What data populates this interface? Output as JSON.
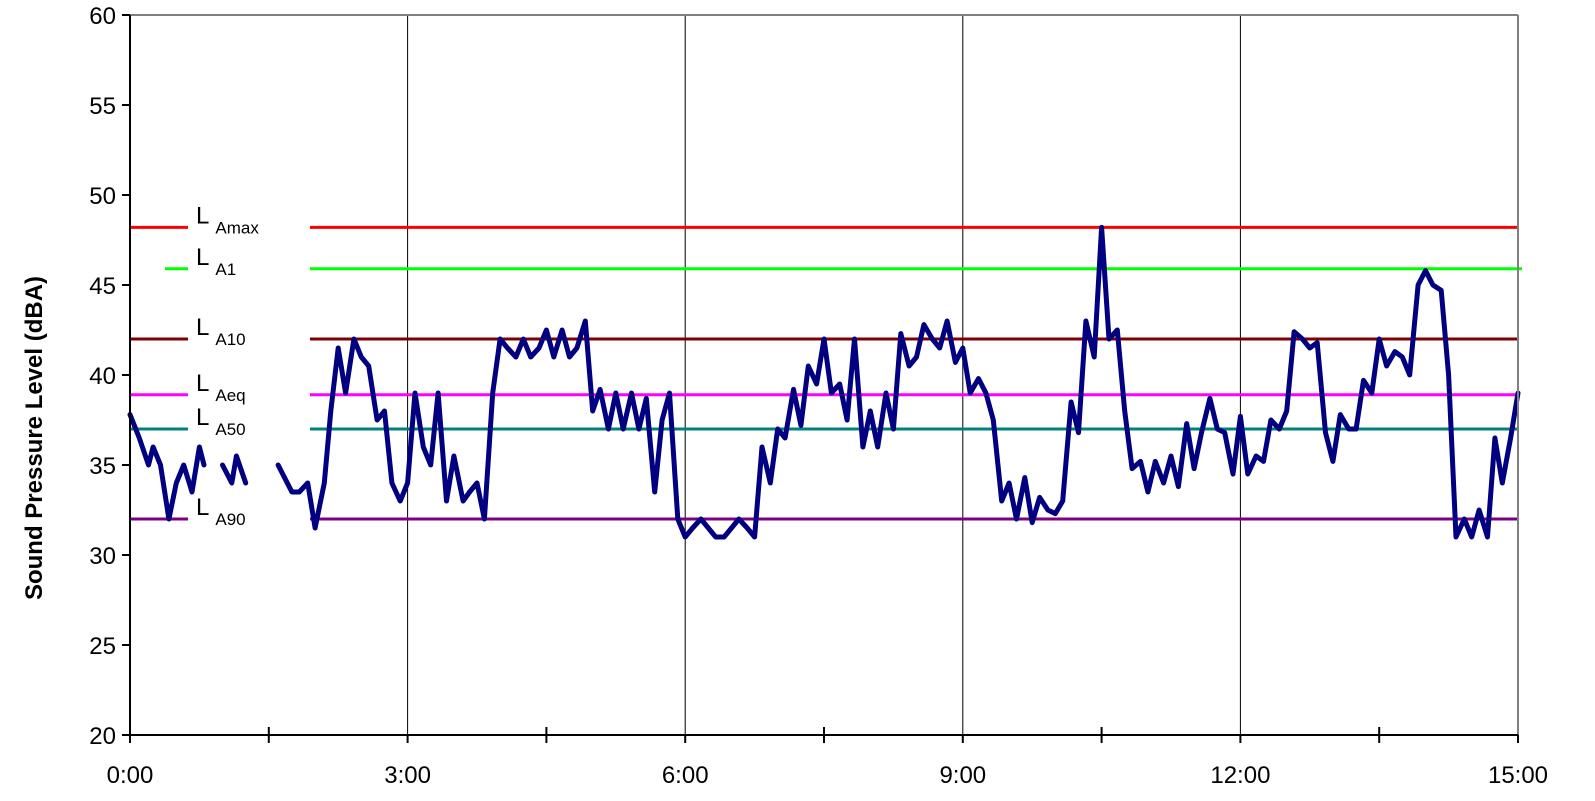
{
  "chart_data": {
    "type": "line",
    "title": "",
    "xlabel": "",
    "ylabel": "Sound Pressure Level (dBA)",
    "xlim": [
      0,
      15
    ],
    "ylim": [
      20,
      60
    ],
    "x_tick_labels": [
      "0:00",
      "3:00",
      "6:00",
      "9:00",
      "12:00",
      "15:00"
    ],
    "x_tick_values": [
      0,
      3,
      6,
      9,
      12,
      15
    ],
    "x_minor_ticks": [
      1.5,
      4.5,
      7.5,
      10.5,
      13.5
    ],
    "y_ticks": [
      20,
      25,
      30,
      35,
      40,
      45,
      50,
      55,
      60
    ],
    "grid": "vertical lines at major x ticks",
    "series": [
      {
        "color": "#000080",
        "x": [
          0.0,
          0.1,
          0.2,
          0.25,
          0.33,
          0.42,
          0.5,
          0.58,
          0.67,
          0.75,
          0.8,
          0.9,
          1.0,
          1.1,
          1.15,
          1.25,
          1.4,
          1.5,
          1.6,
          1.65,
          1.75,
          1.83,
          1.92,
          2.0,
          2.1,
          2.17,
          2.25,
          2.33,
          2.42,
          2.5,
          2.58,
          2.67,
          2.75,
          2.83,
          2.92,
          3.0,
          3.08,
          3.17,
          3.25,
          3.33,
          3.42,
          3.5,
          3.6,
          3.67,
          3.75,
          3.83,
          3.92,
          4.0,
          4.08,
          4.17,
          4.25,
          4.33,
          4.42,
          4.5,
          4.58,
          4.67,
          4.75,
          4.83,
          4.92,
          5.0,
          5.08,
          5.17,
          5.25,
          5.33,
          5.42,
          5.5,
          5.58,
          5.67,
          5.75,
          5.83,
          5.92,
          6.0,
          6.08,
          6.17,
          6.25,
          6.33,
          6.42,
          6.5,
          6.58,
          6.67,
          6.75,
          6.83,
          6.92,
          7.0,
          7.08,
          7.17,
          7.25,
          7.33,
          7.42,
          7.5,
          7.58,
          7.67,
          7.75,
          7.83,
          7.92,
          8.0,
          8.08,
          8.17,
          8.25,
          8.33,
          8.42,
          8.5,
          8.58,
          8.67,
          8.75,
          8.83,
          8.92,
          9.0,
          9.08,
          9.17,
          9.25,
          9.33,
          9.42,
          9.5,
          9.58,
          9.67,
          9.75,
          9.83,
          9.92,
          10.0,
          10.08,
          10.17,
          10.25,
          10.33,
          10.42,
          10.5,
          10.58,
          10.67,
          10.75,
          10.83,
          10.92,
          11.0,
          11.08,
          11.17,
          11.25,
          11.33,
          11.42,
          11.5,
          11.58,
          11.67,
          11.75,
          11.83,
          11.92,
          12.0,
          12.08,
          12.17,
          12.25,
          12.33,
          12.42,
          12.5,
          12.58,
          12.67,
          12.75,
          12.83,
          12.92,
          13.0,
          13.08,
          13.17,
          13.25,
          13.33,
          13.42,
          13.5,
          13.58,
          13.67,
          13.75,
          13.83,
          13.92,
          14.0,
          14.08,
          14.17,
          14.25,
          14.33,
          14.42,
          14.5,
          14.58,
          14.67,
          14.75,
          14.83,
          14.92,
          15.0
        ],
        "values": [
          37.8,
          36.5,
          35,
          36,
          35,
          32,
          34,
          35,
          33.5,
          36,
          35,
          35.5,
          35,
          34,
          35.5,
          34,
          35,
          35,
          35,
          34.5,
          33.5,
          33.5,
          34,
          31.5,
          34,
          38,
          41.5,
          39,
          42,
          41,
          40.5,
          37.5,
          38,
          34,
          33,
          34,
          39,
          36,
          35,
          39,
          33,
          35.5,
          33,
          33.5,
          34,
          32,
          39,
          42,
          41.5,
          41,
          42,
          41,
          41.5,
          42.5,
          41,
          42.5,
          41,
          41.5,
          43,
          38,
          39.2,
          37,
          39,
          37,
          39,
          37,
          38.7,
          33.5,
          37.5,
          39,
          32,
          31,
          31.5,
          32,
          31.5,
          31,
          31,
          31.5,
          32,
          31.5,
          31,
          36,
          34,
          37,
          36.5,
          39.2,
          37.2,
          40.5,
          39.5,
          42,
          39,
          39.5,
          37.5,
          42,
          36,
          38,
          36,
          39,
          37,
          42.3,
          40.5,
          41,
          42.8,
          42,
          41.5,
          43,
          40.7,
          41.5,
          39,
          39.8,
          39,
          37.5,
          33,
          34,
          32,
          34.3,
          31.8,
          33.2,
          32.5,
          32.3,
          33,
          38.5,
          36.8,
          43,
          41,
          48.2,
          42,
          42.5,
          38,
          34.8,
          35.2,
          33.5,
          35.2,
          34,
          35.5,
          33.8,
          37.3,
          34.8,
          36.8,
          38.7,
          37,
          36.8,
          34.5,
          37.7,
          34.5,
          35.5,
          35.2,
          37.5,
          37,
          38,
          42.4,
          42,
          41.5,
          41.8,
          36.8,
          35.2,
          37.8,
          37,
          37,
          39.7,
          39,
          42,
          40.5,
          41.3,
          41,
          40,
          45,
          45.8,
          45,
          44.7,
          40,
          31,
          32,
          31,
          32.5,
          31,
          36.5,
          34,
          36.5,
          39
        ],
        "gaps": [
          [
            0.8,
            1.0
          ],
          [
            1.25,
            1.6
          ]
        ]
      }
    ],
    "statistics": [
      {
        "label": "L",
        "sub": "Amax",
        "value": 48.2,
        "color": "#ff0000"
      },
      {
        "label": "L",
        "sub": "A1",
        "value": 45.9,
        "color": "#00ff00"
      },
      {
        "label": "L",
        "sub": "A10",
        "value": 42.0,
        "color": "#800000"
      },
      {
        "label": "L",
        "sub": "Aeq",
        "value": 38.9,
        "color": "#ff00ff"
      },
      {
        "label": "L",
        "sub": "A50",
        "value": 37.0,
        "color": "#008080"
      },
      {
        "label": "L",
        "sub": "A90",
        "value": 32.0,
        "color": "#800080"
      }
    ]
  }
}
